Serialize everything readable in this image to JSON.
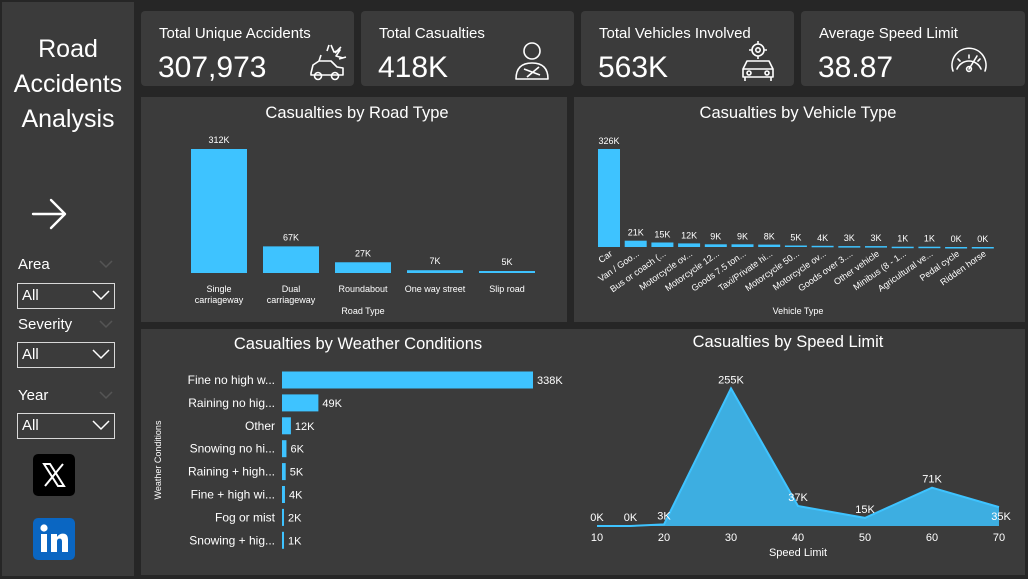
{
  "sidebar": {
    "title_lines": [
      "Road",
      "Accidents",
      "Analysis"
    ],
    "filters": [
      {
        "label": "Area",
        "value": "All"
      },
      {
        "label": "Severity",
        "value": "All"
      },
      {
        "label": "Year",
        "value": "All"
      }
    ],
    "social": [
      "x-icon",
      "linkedin-icon"
    ]
  },
  "kpis": [
    {
      "label": "Total Unique Accidents",
      "value": "307,973",
      "icon": "car-crash-icon"
    },
    {
      "label": "Total Casualties",
      "value": "418K",
      "icon": "injured-person-icon"
    },
    {
      "label": "Total Vehicles Involved",
      "value": "563K",
      "icon": "car-service-icon"
    },
    {
      "label": "Average Speed Limit",
      "value": "38.87",
      "icon": "speedometer-icon"
    }
  ],
  "colors": {
    "accent": "#3ec3ff",
    "panel": "#3b3b3b",
    "background": "#262626"
  },
  "chart_data": [
    {
      "type": "bar",
      "title": "Casualties by Road Type",
      "xlabel": "Road Type",
      "ylabel": "",
      "categories": [
        "Single carriageway",
        "Dual carriageway",
        "Roundabout",
        "One way street",
        "Slip road"
      ],
      "category_lines": [
        [
          "Single",
          "carriageway"
        ],
        [
          "Dual",
          "carriageway"
        ],
        [
          "Roundabout"
        ],
        [
          "One way street"
        ],
        [
          "Slip road"
        ]
      ],
      "values": [
        312,
        67,
        27,
        7,
        5
      ],
      "labels": [
        "312K",
        "67K",
        "27K",
        "7K",
        "5K"
      ],
      "unit": "K"
    },
    {
      "type": "bar",
      "title": "Casualties by Vehicle Type",
      "xlabel": "Vehicle Type",
      "ylabel": "",
      "categories": [
        "Car",
        "Van / Goo...",
        "Bus or coach (...",
        "Motorcycle ov...",
        "Motorcycle 12...",
        "Goods 7.5 ton...",
        "Taxi/Private hi...",
        "Motorcycle 50...",
        "Motorcycle ov...",
        "Goods over 3....",
        "Other vehicle",
        "Minibus (8 - 1...",
        "Agricultural ve...",
        "Pedal cycle",
        "Ridden horse"
      ],
      "values": [
        326,
        21,
        15,
        12,
        9,
        9,
        8,
        5,
        4,
        3,
        3,
        1,
        1,
        0,
        0
      ],
      "labels": [
        "326K",
        "21K",
        "15K",
        "12K",
        "9K",
        "9K",
        "8K",
        "5K",
        "4K",
        "3K",
        "3K",
        "1K",
        "1K",
        "0K",
        "0K"
      ],
      "unit": "K"
    },
    {
      "type": "bar",
      "orientation": "horizontal",
      "title": "Casualties by Weather Conditions",
      "xlabel": "",
      "ylabel": "Weather Conditions",
      "categories": [
        "Fine no high w...",
        "Raining no hig...",
        "Other",
        "Snowing no hi...",
        "Raining + high...",
        "Fine + high wi...",
        "Fog or mist",
        "Snowing + hig..."
      ],
      "values": [
        338,
        49,
        12,
        6,
        5,
        4,
        2,
        1
      ],
      "labels": [
        "338K",
        "49K",
        "12K",
        "6K",
        "5K",
        "4K",
        "2K",
        "1K"
      ],
      "unit": "K"
    },
    {
      "type": "area",
      "title": "Casualties by Speed Limit",
      "xlabel": "Speed Limit",
      "ylabel": "",
      "x": [
        10,
        15,
        20,
        30,
        40,
        50,
        60,
        70
      ],
      "values": [
        0,
        0,
        3,
        255,
        37,
        15,
        71,
        35
      ],
      "labels": [
        "0K",
        "0K",
        "3K",
        "255K",
        "37K",
        "15K",
        "71K",
        "35K"
      ],
      "xticks": [
        10,
        20,
        30,
        40,
        50,
        60,
        70
      ],
      "xlim": [
        10,
        70
      ],
      "ylim": [
        0,
        265
      ],
      "unit": "K"
    }
  ]
}
